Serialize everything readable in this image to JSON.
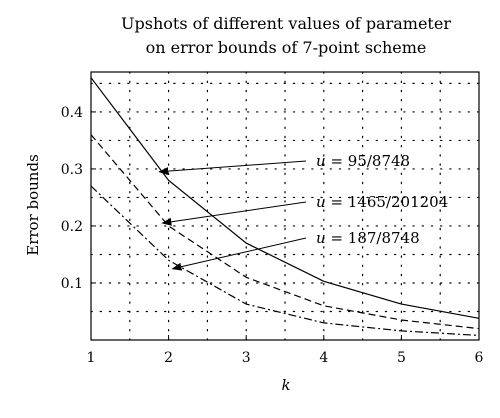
{
  "chart_data": {
    "type": "line",
    "title_lines": [
      "Upshots of different values of parameter",
      "on error bounds of 7-point scheme"
    ],
    "xlabel": "k",
    "ylabel": "Error bounds",
    "xlim": [
      1,
      6
    ],
    "ylim": [
      0,
      0.47
    ],
    "xticks": [
      1,
      2,
      3,
      4,
      5,
      6
    ],
    "xtick_labels": [
      "1",
      "2",
      "3",
      "4",
      "5",
      "6"
    ],
    "yticks": [
      0.1,
      0.2,
      0.3,
      0.4
    ],
    "ytick_labels": [
      "0.1",
      "0.2",
      "0.3",
      "0.4"
    ],
    "grid": true,
    "x": [
      1,
      2,
      3,
      4,
      5,
      6
    ],
    "series": [
      {
        "name": "u = 95/8748",
        "var": "u",
        "value_text": "= 95/8748",
        "style": "solid",
        "values": [
          0.46,
          0.28,
          0.17,
          0.103,
          0.063,
          0.038
        ]
      },
      {
        "name": "u = 1465/201204",
        "var": "u",
        "value_text": "= 1465/201204",
        "style": "dashed",
        "values": [
          0.36,
          0.2,
          0.11,
          0.06,
          0.035,
          0.02
        ]
      },
      {
        "name": "u = 187/8748",
        "var": "u",
        "value_text": "= 187/8748",
        "style": "dashdot",
        "values": [
          0.27,
          0.14,
          0.063,
          0.03,
          0.016,
          0.008
        ]
      }
    ],
    "annotations": [
      {
        "series": 0,
        "point_at": [
          1.88,
          0.295
        ]
      },
      {
        "series": 1,
        "point_at": [
          1.92,
          0.205
        ]
      },
      {
        "series": 2,
        "point_at": [
          2.05,
          0.125
        ]
      }
    ]
  }
}
